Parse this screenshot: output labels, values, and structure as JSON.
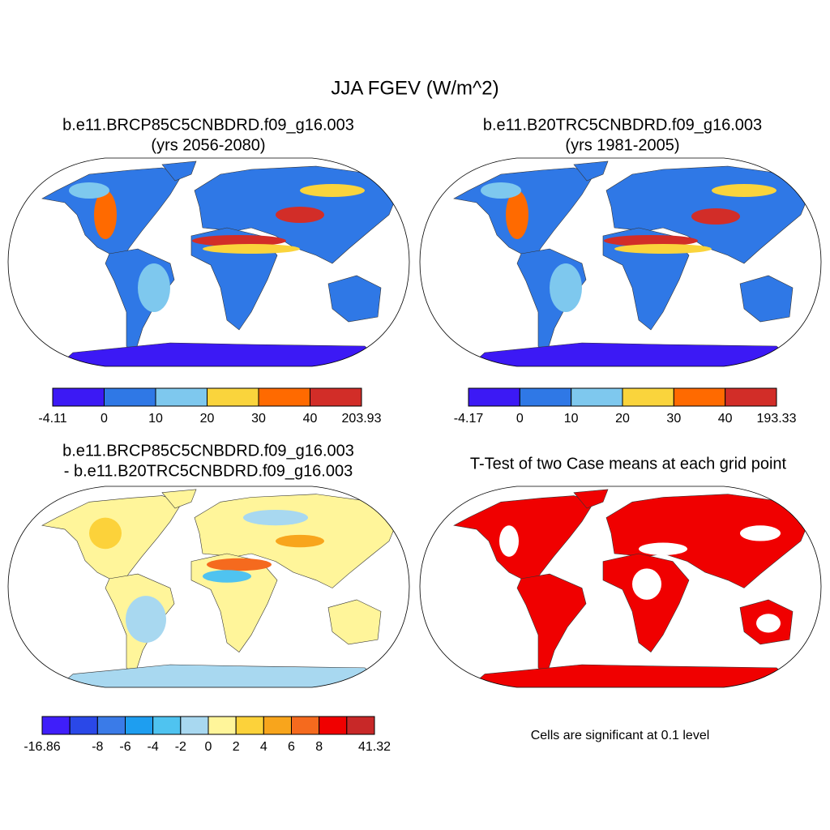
{
  "title": "JJA FGEV (W/m^2)",
  "panels": [
    {
      "title": [
        "b.e11.BRCP85C5CNBDRD.f09_g16.003",
        "(yrs 2056-2080)"
      ],
      "colorbar": {
        "colors": [
          "#3c19f5",
          "#2f78e6",
          "#7ec8ee",
          "#fad43c",
          "#ff6a00",
          "#d22d28"
        ],
        "labels": [
          -4.11,
          0,
          10,
          20,
          30,
          40,
          203.93
        ]
      }
    },
    {
      "title": [
        "b.e11.B20TRC5CNBDRD.f09_g16.003",
        "(yrs 1981-2005)"
      ],
      "colorbar": {
        "colors": [
          "#3c19f5",
          "#2f78e6",
          "#7ec8ee",
          "#fad43c",
          "#ff6a00",
          "#d22d28"
        ],
        "labels": [
          -4.17,
          0,
          10,
          20,
          30,
          40,
          193.33
        ]
      }
    },
    {
      "title": [
        "b.e11.BRCP85C5CNBDRD.f09_g16.003",
        "- b.e11.B20TRC5CNBDRD.f09_g16.003"
      ],
      "colorbar": {
        "colors": [
          "#3f1efa",
          "#2a48e8",
          "#3a7be8",
          "#1e9ef0",
          "#4fc3f0",
          "#a8d8f0",
          "#fff59a",
          "#fcd23a",
          "#f8a51c",
          "#f56a1e",
          "#f00000",
          "#c82828"
        ],
        "labels": [
          -16.86,
          null,
          -8,
          -6,
          -4,
          -2,
          0,
          2,
          4,
          6,
          8,
          null,
          41.32
        ]
      }
    },
    {
      "title": [
        "T-Test of two Case means at each grid point"
      ],
      "note": "Cells are significant at 0.1 level"
    }
  ]
}
